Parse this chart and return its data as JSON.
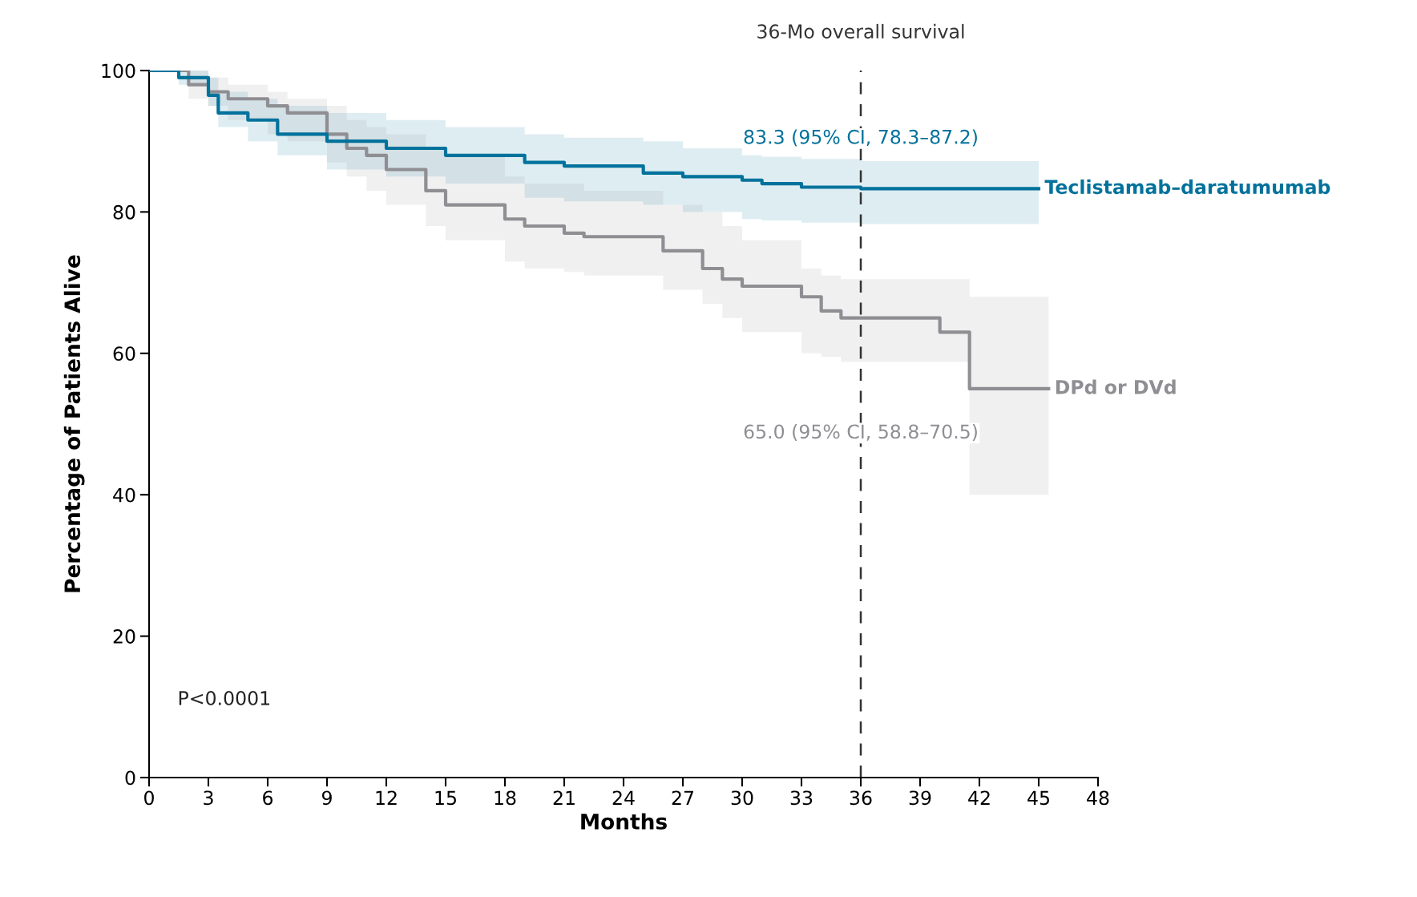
{
  "chart_data": {
    "type": "step",
    "xlabel": "Months",
    "ylabel": "Percentage of Patients Alive",
    "xlim": [
      0,
      48
    ],
    "xticks": [
      0,
      3,
      6,
      9,
      12,
      15,
      18,
      21,
      24,
      27,
      30,
      33,
      36,
      39,
      42,
      45,
      48
    ],
    "ylim": [
      0,
      100
    ],
    "yticks": [
      0,
      20,
      40,
      60,
      80,
      100
    ],
    "grid": false,
    "legend": false,
    "series": [
      {
        "name": "Teclistamab–daratumumab",
        "color": "#00729c",
        "x": [
          0,
          1.5,
          3,
          3.5,
          5,
          6.5,
          9,
          12,
          15,
          19,
          21,
          25,
          27,
          30,
          31,
          33,
          36,
          45
        ],
        "values": [
          100,
          99,
          96.5,
          94,
          93,
          91,
          90,
          89,
          88,
          87,
          86.5,
          85.5,
          85,
          84.5,
          84,
          83.5,
          83.3,
          83.3
        ],
        "lower": [
          100,
          98,
          95,
          92,
          90,
          88,
          86,
          85,
          84,
          82,
          81.5,
          81,
          80,
          79,
          78.8,
          78.5,
          78.3,
          78.3
        ],
        "upper": [
          100,
          100,
          99,
          97,
          96,
          95,
          94,
          93,
          92,
          91,
          90.5,
          90,
          89,
          88,
          87.8,
          87.5,
          87.2,
          87.2
        ]
      },
      {
        "name": "DPd or DVd",
        "color": "#8e8e93",
        "x": [
          0,
          2,
          3,
          4,
          6,
          7,
          9,
          10,
          11,
          12,
          14,
          15,
          18,
          19,
          21,
          22,
          26,
          28,
          29,
          30,
          33,
          34,
          35,
          40,
          41.5,
          45.5
        ],
        "values": [
          100,
          98,
          97,
          96,
          95,
          94,
          91,
          89,
          88,
          86,
          83,
          81,
          79,
          78,
          77,
          76.5,
          74.5,
          72,
          70.5,
          69.5,
          68,
          66,
          65,
          63,
          55,
          55
        ],
        "lower": [
          100,
          96,
          95,
          93,
          91,
          90,
          87,
          85,
          83,
          81,
          78,
          76,
          73,
          72,
          71.5,
          71,
          69,
          67,
          65,
          63,
          60,
          59.5,
          58.8,
          58.8,
          40,
          40
        ],
        "upper": [
          100,
          100,
          99,
          98,
          97,
          96,
          95,
          93,
          92,
          91,
          89,
          88,
          85,
          84,
          84,
          83,
          81,
          80,
          78,
          76,
          72,
          71,
          70.5,
          70.5,
          68,
          68
        ]
      }
    ],
    "ref_lines": [
      {
        "axis": "x",
        "value": 36,
        "label": "36-Mo overall survival",
        "color": "#333333",
        "line_style": "dashed"
      }
    ],
    "annotations": [
      {
        "text": "83.3 (95% CI, 78.3–87.2)",
        "x": 36,
        "y": 83.3
      },
      "65.0 (95% CI, 58.8–70.5)",
      "P<0.0001"
    ]
  }
}
